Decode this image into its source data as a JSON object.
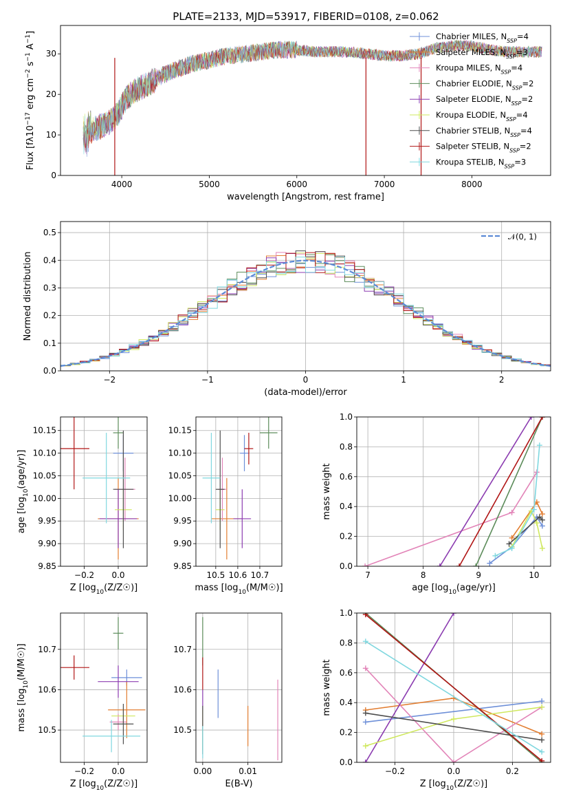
{
  "chart_data": [
    {
      "id": "spectrum",
      "type": "line",
      "title": "PLATE=2133, MJD=53917, FIBERID=0108, z=0.062",
      "xlabel": "wavelength [Angstrom, rest frame]",
      "ylabel": "Flux [fλ10⁻¹⁷ erg cm⁻² s⁻¹ A⁻¹]",
      "xlim": [
        3300,
        8900
      ],
      "ylim": [
        0,
        37
      ],
      "xticks": [
        4000,
        5000,
        6000,
        7000,
        8000
      ],
      "yticks": [
        0,
        10,
        20,
        30
      ],
      "legend_position": "upper right",
      "legend": [
        "Chabrier MILES, N_SSP=4",
        "Salpeter MILES, N_SSP=3",
        "Kroupa MILES, N_SSP=4",
        "Chabrier ELODIE, N_SSP=2",
        "Salpeter ELODIE, N_SSP=2",
        "Kroupa ELODIE, N_SSP=4",
        "Chabrier STELIB, N_SSP=4",
        "Salpeter STELIB, N_SSP=2",
        "Kroupa STELIB, N_SSP=3"
      ],
      "spectrum_x": [
        3560,
        3650,
        3750,
        3850,
        3950,
        4050,
        4150,
        4300,
        4450,
        4600,
        4800,
        5000,
        5200,
        5400,
        5600,
        5800,
        6000,
        6200,
        6400,
        6600,
        6800,
        7000,
        7200,
        7400,
        7600,
        7800,
        8000,
        8200,
        8400,
        8600,
        8800
      ],
      "spectrum_y": [
        10,
        11,
        12,
        13,
        15,
        19,
        21,
        22.5,
        24.5,
        26,
        27.5,
        28.5,
        29.5,
        30,
        30.5,
        31,
        31,
        30.5,
        30.5,
        30.5,
        30,
        29.5,
        29.5,
        30,
        31.5,
        32,
        32,
        31,
        30.5,
        30.5,
        30.5
      ]
    },
    {
      "id": "residuals",
      "type": "histogram",
      "xlabel": "(data-model)/error",
      "ylabel": "Normed distribution",
      "xlim": [
        -2.5,
        2.5
      ],
      "ylim": [
        0,
        0.54
      ],
      "xticks": [
        -2,
        -1,
        0,
        1,
        2
      ],
      "yticks": [
        0.0,
        0.1,
        0.2,
        0.3,
        0.4,
        0.5
      ],
      "bin_width": 0.1,
      "reference_curve": "𝒩(0, 1)",
      "legend_position": "upper right",
      "grid": true
    },
    {
      "id": "age-vs-Z",
      "type": "scatter",
      "xlabel": "Z [log₁₀(Z/Z☉)]",
      "ylabel": "age  [log₁₀(age/yr)]",
      "xlim": [
        -0.34,
        0.17
      ],
      "ylim": [
        9.85,
        10.18
      ],
      "xticks": [
        -0.2,
        0.0
      ],
      "yticks": [
        9.85,
        9.9,
        9.95,
        10.0,
        10.05,
        10.1,
        10.15
      ],
      "grid": true,
      "points": [
        {
          "x": 0.03,
          "y": 10.1,
          "xerr": 0.06,
          "yerr": 0.04
        },
        {
          "x": 0.0,
          "y": 9.955,
          "xerr": 0.12,
          "yerr": 0.09
        },
        {
          "x": 0.04,
          "y": 10.02,
          "xerr": 0.06,
          "yerr": 0.07
        },
        {
          "x": 0.0,
          "y": 10.145,
          "xerr": 0.03,
          "yerr": 0.035
        },
        {
          "x": 0.0,
          "y": 9.955,
          "xerr": 0.11,
          "yerr": 0.065
        },
        {
          "x": 0.03,
          "y": 9.975,
          "xerr": 0.05,
          "yerr": 0.045
        },
        {
          "x": 0.03,
          "y": 10.02,
          "xerr": 0.06,
          "yerr": 0.13
        },
        {
          "x": -0.26,
          "y": 10.11,
          "xerr": 0.09,
          "yerr": 0.09
        },
        {
          "x": -0.07,
          "y": 10.045,
          "xerr": 0.14,
          "yerr": 0.1
        }
      ]
    },
    {
      "id": "age-vs-mass",
      "type": "scatter",
      "xlabel": "mass [log₁₀(M/M☉)]",
      "ylabel": "",
      "xlim": [
        10.41,
        10.8
      ],
      "ylim": [
        9.85,
        10.18
      ],
      "xticks": [
        10.5,
        10.6,
        10.7
      ],
      "yticks": [
        9.85,
        9.9,
        9.95,
        10.0,
        10.05,
        10.1,
        10.15
      ],
      "grid": true,
      "points": [
        {
          "x": 10.63,
          "y": 10.1,
          "xerr": 0.02,
          "yerr": 0.04
        },
        {
          "x": 10.55,
          "y": 9.955,
          "xerr": 0.07,
          "yerr": 0.09
        },
        {
          "x": 10.53,
          "y": 10.02,
          "xerr": 0.02,
          "yerr": 0.07
        },
        {
          "x": 10.74,
          "y": 10.145,
          "xerr": 0.04,
          "yerr": 0.035
        },
        {
          "x": 10.62,
          "y": 9.955,
          "xerr": 0.04,
          "yerr": 0.065
        },
        {
          "x": 10.52,
          "y": 9.975,
          "xerr": 0.02,
          "yerr": 0.045
        },
        {
          "x": 10.52,
          "y": 10.02,
          "xerr": 0.02,
          "yerr": 0.13
        },
        {
          "x": 10.65,
          "y": 10.11,
          "xerr": 0.02,
          "yerr": 0.035
        },
        {
          "x": 10.48,
          "y": 10.045,
          "xerr": 0.04,
          "yerr": 0.1
        }
      ]
    },
    {
      "id": "mass-weight-vs-age",
      "type": "line",
      "xlabel": "age  [log₁₀(age/yr)]",
      "ylabel": "mass weight",
      "xlim": [
        6.8,
        10.3
      ],
      "ylim": [
        0,
        1.0
      ],
      "xticks": [
        7,
        8,
        9,
        10
      ],
      "yticks": [
        0.0,
        0.2,
        0.4,
        0.6,
        0.8,
        1.0
      ],
      "grid": true,
      "series": [
        {
          "x": [
            9.2,
            9.6,
            10.05,
            10.15
          ],
          "y": [
            0.02,
            0.13,
            0.33,
            0.27
          ]
        },
        {
          "x": [
            9.6,
            10.05,
            10.15
          ],
          "y": [
            0.19,
            0.43,
            0.35
          ]
        },
        {
          "x": [
            6.95,
            9.6,
            10.05
          ],
          "y": [
            0.0,
            0.36,
            0.63
          ]
        },
        {
          "x": [
            8.95,
            10.15
          ],
          "y": [
            0.0,
            1.0
          ]
        },
        {
          "x": [
            8.3,
            9.95
          ],
          "y": [
            0.0,
            1.0
          ]
        },
        {
          "x": [
            9.6,
            9.95,
            10.05,
            10.15
          ],
          "y": [
            0.13,
            0.37,
            0.29,
            0.12
          ]
        },
        {
          "x": [
            9.55,
            10.1,
            10.15
          ],
          "y": [
            0.15,
            0.33,
            0.31
          ]
        },
        {
          "x": [
            8.65,
            10.15
          ],
          "y": [
            0.0,
            1.0
          ]
        },
        {
          "x": [
            9.3,
            9.6,
            10.0,
            10.1
          ],
          "y": [
            0.07,
            0.12,
            0.38,
            0.81
          ]
        }
      ]
    },
    {
      "id": "mass-vs-Z",
      "type": "scatter",
      "xlabel": "Z [log₁₀(Z/Z☉)]",
      "ylabel": "mass [log₁₀(M/M☉)]",
      "xlim": [
        -0.34,
        0.17
      ],
      "ylim": [
        10.42,
        10.79
      ],
      "xticks": [
        -0.2,
        0.0
      ],
      "yticks": [
        10.5,
        10.6,
        10.7
      ],
      "grid": true,
      "points": [
        {
          "x": 0.05,
          "y": 10.63,
          "xerr": 0.09,
          "yerr": 0.02
        },
        {
          "x": 0.05,
          "y": 10.55,
          "xerr": 0.11,
          "yerr": 0.07
        },
        {
          "x": 0.0,
          "y": 10.52,
          "xerr": 0.05,
          "yerr": 0.02
        },
        {
          "x": 0.0,
          "y": 10.74,
          "xerr": 0.03,
          "yerr": 0.04
        },
        {
          "x": 0.0,
          "y": 10.62,
          "xerr": 0.12,
          "yerr": 0.04
        },
        {
          "x": 0.03,
          "y": 10.535,
          "xerr": 0.07,
          "yerr": 0.02
        },
        {
          "x": 0.03,
          "y": 10.515,
          "xerr": 0.06,
          "yerr": 0.05
        },
        {
          "x": -0.26,
          "y": 10.655,
          "xerr": 0.09,
          "yerr": 0.03
        },
        {
          "x": -0.04,
          "y": 10.485,
          "xerr": 0.17,
          "yerr": 0.04
        }
      ]
    },
    {
      "id": "mass-vs-EBV",
      "type": "scatter",
      "xlabel": "E(B-V)",
      "ylabel": "",
      "xlim": [
        -0.0015,
        0.0175
      ],
      "ylim": [
        10.42,
        10.79
      ],
      "xticks": [
        0.0,
        0.01
      ],
      "yticks": [
        10.5,
        10.6,
        10.7
      ],
      "grid": true,
      "points": [
        {
          "x": 0.0034,
          "y": 10.59,
          "yerr": 0.06
        },
        {
          "x": 0.01,
          "y": 10.51,
          "yerr": 0.05
        },
        {
          "x": 0.0166,
          "y": 10.525,
          "yerr": 0.1
        },
        {
          "x": 0.0,
          "y": 10.72,
          "yerr": 0.06
        },
        {
          "x": 0.0,
          "y": 10.55,
          "yerr": 0.05
        },
        {
          "x": 0.0,
          "y": 10.5,
          "yerr": 0.05
        },
        {
          "x": 0.0,
          "y": 10.5,
          "yerr": 0.06
        },
        {
          "x": 0.0,
          "y": 10.64,
          "yerr": 0.04
        },
        {
          "x": 0.0,
          "y": 10.47,
          "yerr": 0.04
        }
      ]
    },
    {
      "id": "mass-weight-vs-Z",
      "type": "line",
      "xlabel": "Z [log₁₀(Z/Z☉)]",
      "ylabel": "mass weight",
      "xlim": [
        -0.33,
        0.33
      ],
      "ylim": [
        0,
        1.0
      ],
      "xticks": [
        -0.2,
        0.0,
        0.2
      ],
      "yticks": [
        0.0,
        0.2,
        0.4,
        0.6,
        0.8,
        1.0
      ],
      "grid": true,
      "series": [
        {
          "x": [
            -0.3,
            0.3
          ],
          "y": [
            0.27,
            0.41
          ]
        },
        {
          "x": [
            -0.3,
            0.0,
            0.3
          ],
          "y": [
            0.35,
            0.43,
            0.19
          ]
        },
        {
          "x": [
            -0.3,
            0.0,
            0.3
          ],
          "y": [
            0.63,
            0.0,
            0.37
          ]
        },
        {
          "x": [
            -0.3,
            0.3
          ],
          "y": [
            1.0,
            0.0
          ]
        },
        {
          "x": [
            -0.3,
            0.0
          ],
          "y": [
            0.0,
            1.0
          ]
        },
        {
          "x": [
            -0.3,
            0.0,
            0.3
          ],
          "y": [
            0.11,
            0.29,
            0.37
          ]
        },
        {
          "x": [
            -0.3,
            0.3
          ],
          "y": [
            0.33,
            0.15
          ]
        },
        {
          "x": [
            -0.3,
            0.3
          ],
          "y": [
            0.99,
            0.01
          ]
        },
        {
          "x": [
            -0.3,
            0.3
          ],
          "y": [
            0.81,
            0.07
          ]
        }
      ]
    }
  ],
  "colors": [
    "#6d8fd8",
    "#e27d30",
    "#e284b8",
    "#5c8c5a",
    "#8b3bb0",
    "#cfe85e",
    "#4d4d4d",
    "#b01414",
    "#7fd7df"
  ]
}
